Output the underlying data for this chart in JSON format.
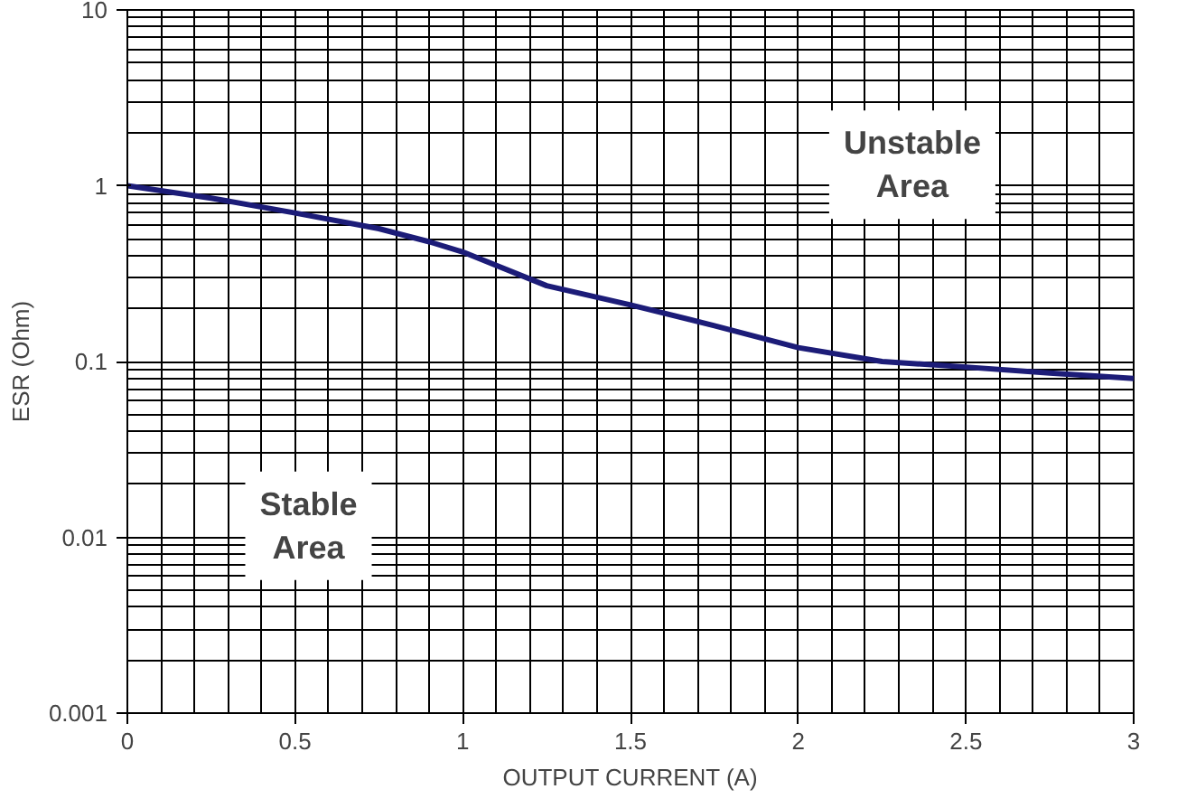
{
  "chart_data": {
    "type": "line",
    "xlabel": "OUTPUT CURRENT (A)",
    "ylabel": "ESR (Ohm)",
    "x": [
      0,
      0.25,
      0.5,
      0.75,
      0.9,
      1.0,
      1.25,
      1.5,
      1.75,
      2.0,
      2.25,
      2.5,
      2.75,
      3.0
    ],
    "series": [
      {
        "color": "#1c1c78",
        "values": [
          1.0,
          0.85,
          0.7,
          0.57,
          0.48,
          0.42,
          0.27,
          0.21,
          0.16,
          0.12,
          0.1,
          0.093,
          0.086,
          0.08
        ]
      }
    ],
    "xlim": [
      0,
      3
    ],
    "ylim": [
      0.001,
      10
    ],
    "xticks": [
      0,
      0.5,
      1,
      1.5,
      2,
      2.5,
      3
    ],
    "yticks": [
      0.001,
      0.01,
      0.1,
      1,
      10
    ],
    "log": "y",
    "grid": true,
    "line_style": "solid",
    "annotations": [
      "Unstable Area",
      "Stable Area"
    ]
  }
}
